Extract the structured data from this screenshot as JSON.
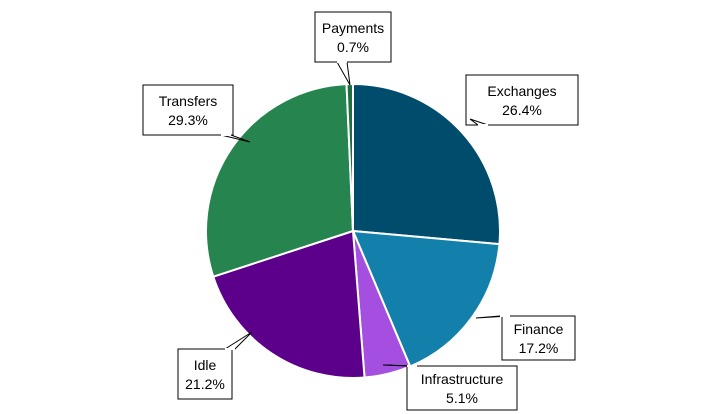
{
  "chart_data": {
    "type": "pie",
    "title": "",
    "slices": [
      {
        "label": "Exchanges",
        "value": 26.4,
        "display": "26.4%",
        "color": "#004c6d"
      },
      {
        "label": "Finance",
        "value": 17.2,
        "display": "17.2%",
        "color": "#1380ab"
      },
      {
        "label": "Infrastructure",
        "value": 5.1,
        "display": "5.1%",
        "color": "#a54fe0"
      },
      {
        "label": "Idle",
        "value": 21.2,
        "display": "21.2%",
        "color": "#5c008c"
      },
      {
        "label": "Transfers",
        "value": 29.3,
        "display": "29.3%",
        "color": "#26854f"
      },
      {
        "label": "Payments",
        "value": 0.7,
        "display": "0.7%",
        "color": "#1f6e3f"
      }
    ],
    "start_angle_deg": 0,
    "direction": "clockwise",
    "legend": "none",
    "labels": "callouts"
  }
}
